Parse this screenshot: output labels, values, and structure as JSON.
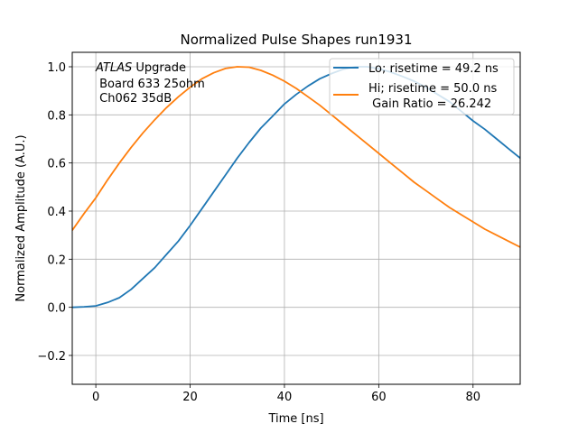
{
  "chart_data": {
    "type": "line",
    "title": "Normalized Pulse Shapes run1931",
    "xlabel": "Time [ns]",
    "ylabel": "Normalized Amplitude (A.U.)",
    "xlim": [
      -5,
      90
    ],
    "ylim": [
      -0.32,
      1.06
    ],
    "xticks": [
      0,
      20,
      40,
      60,
      80
    ],
    "xtick_labels": [
      "0",
      "20",
      "40",
      "60",
      "80"
    ],
    "yticks": [
      -0.2,
      0.0,
      0.2,
      0.4,
      0.6,
      0.8,
      1.0
    ],
    "ytick_labels": [
      "−0.2",
      "0.0",
      "0.2",
      "0.4",
      "0.6",
      "0.8",
      "1.0"
    ],
    "grid": true,
    "legend_position": "top-right",
    "annotation": {
      "italic_part": "ATLAS",
      "lines": [
        " Upgrade",
        " Board 633 25ohm",
        " Ch062 35dB"
      ]
    },
    "series": [
      {
        "name": "Lo; risetime = 49.2 ns",
        "color": "#1f77b4",
        "x": [
          -5,
          -2.5,
          0,
          2.5,
          5,
          7.5,
          10,
          12.5,
          15,
          17.5,
          20,
          22.5,
          25,
          27.5,
          30,
          32.5,
          35,
          37.5,
          40,
          42.5,
          45,
          47.5,
          50,
          52.5,
          55,
          57.5,
          60,
          62.5,
          65,
          67.5,
          70,
          72.5,
          75,
          77.5,
          80,
          82.5,
          85,
          87.5,
          90
        ],
        "y": [
          0.0,
          0.002,
          0.006,
          0.02,
          0.04,
          0.075,
          0.12,
          0.165,
          0.22,
          0.275,
          0.34,
          0.41,
          0.48,
          0.55,
          0.62,
          0.685,
          0.745,
          0.795,
          0.845,
          0.885,
          0.92,
          0.95,
          0.972,
          0.99,
          1.0,
          1.0,
          0.992,
          0.978,
          0.96,
          0.94,
          0.915,
          0.885,
          0.855,
          0.815,
          0.775,
          0.74,
          0.7,
          0.66,
          0.62
        ]
      },
      {
        "name": "Hi; risetime = 50.0 ns\n Gain Ratio = 26.242",
        "color": "#ff7f0e",
        "x": [
          -5,
          -2.5,
          0,
          2.5,
          5,
          7.5,
          10,
          12.5,
          15,
          17.5,
          20,
          22.5,
          25,
          27.5,
          30,
          32.5,
          35,
          37.5,
          40,
          42.5,
          45,
          47.5,
          50,
          52.5,
          55,
          57.5,
          60,
          62.5,
          65,
          67.5,
          70,
          72.5,
          75,
          77.5,
          80,
          82.5,
          85,
          87.5,
          90
        ],
        "y": [
          0.32,
          0.39,
          0.455,
          0.53,
          0.6,
          0.665,
          0.725,
          0.78,
          0.83,
          0.875,
          0.915,
          0.95,
          0.975,
          0.993,
          1.0,
          0.998,
          0.985,
          0.965,
          0.94,
          0.91,
          0.875,
          0.84,
          0.8,
          0.76,
          0.72,
          0.68,
          0.64,
          0.6,
          0.56,
          0.52,
          0.485,
          0.45,
          0.415,
          0.385,
          0.355,
          0.325,
          0.3,
          0.275,
          0.25
        ]
      }
    ]
  }
}
